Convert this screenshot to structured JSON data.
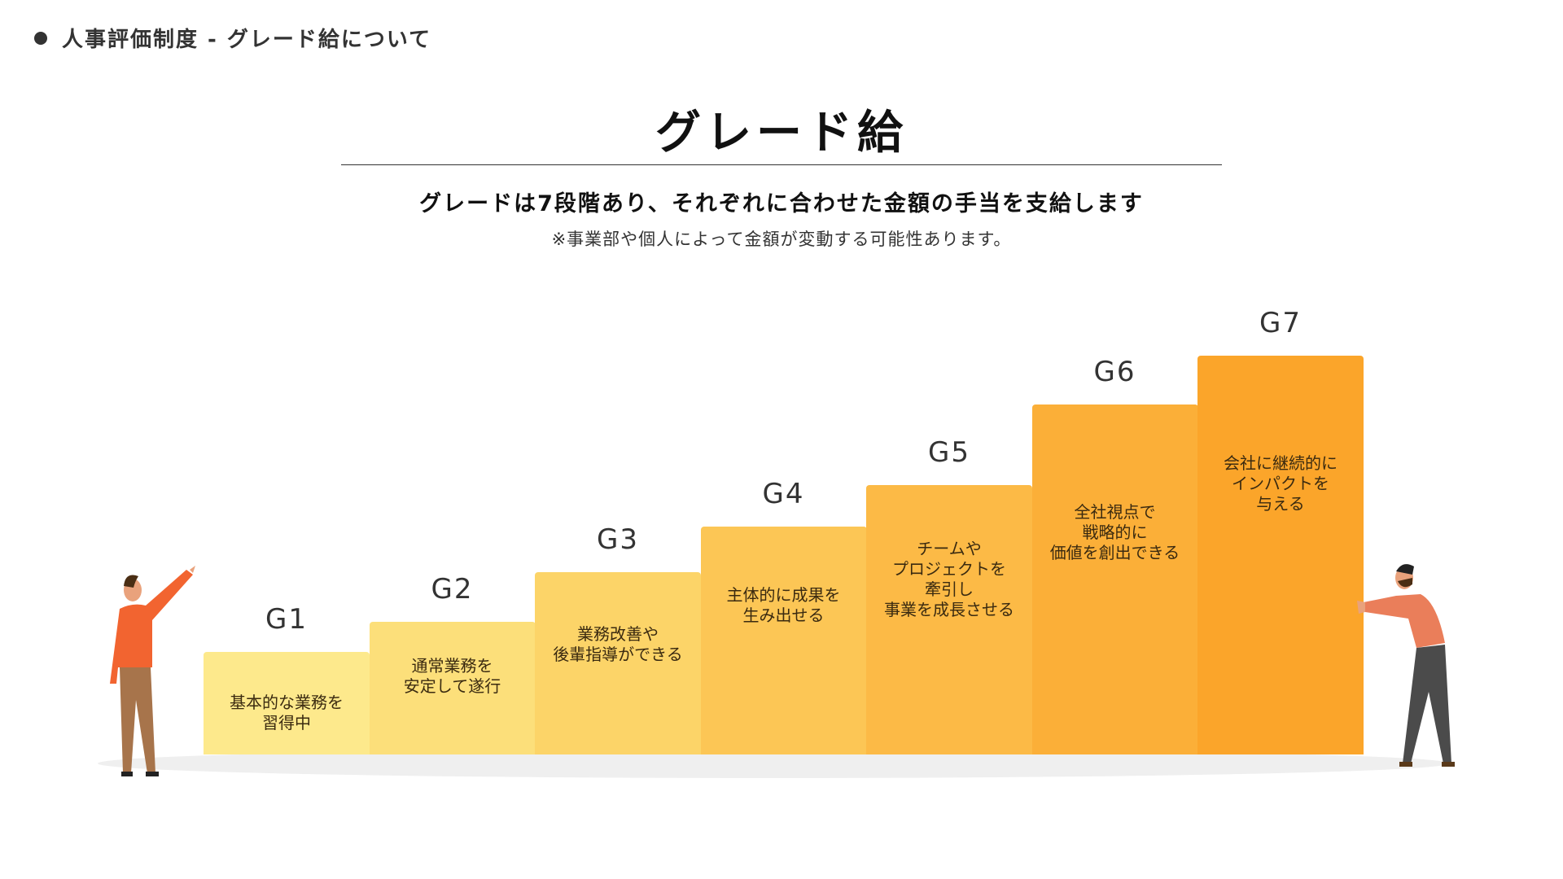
{
  "header": {
    "breadcrumb": "人事評価制度 - グレード給について"
  },
  "title": "グレード給",
  "subtitle": "グレードは7段階あり、それぞれに合わせた金額の手当を支給します",
  "note": "※事業部や個人によって金額が変動する可能性あります。",
  "grades": [
    {
      "label": "G1",
      "desc": "基本的な業務を\n習得中",
      "level": 1,
      "color": "#FDE98C"
    },
    {
      "label": "G2",
      "desc": "通常業務を\n安定して遂行",
      "level": 2,
      "color": "#FCDF7A"
    },
    {
      "label": "G3",
      "desc": "業務改善や\n後輩指導ができる",
      "level": 3,
      "color": "#FCD468"
    },
    {
      "label": "G4",
      "desc": "主体的に成果を\n生み出せる",
      "level": 4,
      "color": "#FCC655"
    },
    {
      "label": "G5",
      "desc": "チームや\nプロジェクトを\n牽引し\n事業を成長させる",
      "level": 5,
      "color": "#FCBA46"
    },
    {
      "label": "G6",
      "desc": "全社視点で\n戦略的に\n価値を創出できる",
      "level": 6,
      "color": "#FBAF38"
    },
    {
      "label": "G7",
      "desc": "会社に継続的に\nインパクトを\n与える",
      "level": 7,
      "color": "#FBA52A"
    }
  ]
}
